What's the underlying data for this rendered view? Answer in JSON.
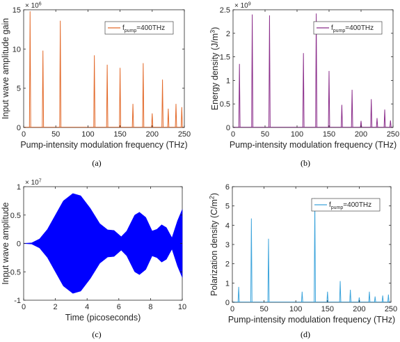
{
  "figure": {
    "captions": [
      "(a)",
      "(b)",
      "(c)",
      "(d)"
    ]
  },
  "chart_data": [
    {
      "type": "line",
      "panel": "a",
      "xlabel": "Pump-intensity modulation frequency (THz)",
      "ylabel": "Input wave amplitude gain",
      "exponent_label": "× 10^6",
      "xlim": [
        0,
        250
      ],
      "ylim": [
        0,
        15
      ],
      "xticks": [
        0,
        50,
        100,
        150,
        200,
        250
      ],
      "yticks": [
        0,
        5,
        10,
        15
      ],
      "grid": false,
      "legend": {
        "label": "f_pump=400THz",
        "label_main": "f",
        "label_sub": "pump",
        "label_rest": "=400THz",
        "position": "top-right"
      },
      "color": "#e36b2c",
      "peaks": [
        {
          "x": 10,
          "y": 14.8
        },
        {
          "x": 30,
          "y": 9.8
        },
        {
          "x": 57,
          "y": 13.6
        },
        {
          "x": 110,
          "y": 9.2
        },
        {
          "x": 130,
          "y": 8.0
        },
        {
          "x": 150,
          "y": 7.6
        },
        {
          "x": 170,
          "y": 3.0
        },
        {
          "x": 186,
          "y": 8.2
        },
        {
          "x": 200,
          "y": 1.8
        },
        {
          "x": 216,
          "y": 6.1
        },
        {
          "x": 225,
          "y": 2.4
        },
        {
          "x": 237,
          "y": 3.0
        },
        {
          "x": 246,
          "y": 2.6
        }
      ]
    },
    {
      "type": "line",
      "panel": "b",
      "xlabel": "Pump-intensity modulation frequency (THz)",
      "ylabel": "Energy density (J/m^3)",
      "exponent_label": "× 10^9",
      "xlim": [
        0,
        250
      ],
      "ylim": [
        0,
        2.5
      ],
      "xticks": [
        0,
        50,
        100,
        150,
        200,
        250
      ],
      "yticks": [
        0,
        0.5,
        1,
        1.5,
        2,
        2.5
      ],
      "grid": false,
      "legend": {
        "label": "f_pump=400THz",
        "label_main": "f",
        "label_sub": "pump",
        "label_rest": "=400THz",
        "position": "top-right"
      },
      "color": "#8b2e8b",
      "peaks": [
        {
          "x": 10,
          "y": 1.35
        },
        {
          "x": 30,
          "y": 2.4
        },
        {
          "x": 57,
          "y": 2.38
        },
        {
          "x": 110,
          "y": 1.58
        },
        {
          "x": 130,
          "y": 2.42
        },
        {
          "x": 150,
          "y": 1.2
        },
        {
          "x": 170,
          "y": 0.48
        },
        {
          "x": 186,
          "y": 0.8
        },
        {
          "x": 200,
          "y": 0.14
        },
        {
          "x": 216,
          "y": 0.6
        },
        {
          "x": 225,
          "y": 0.2
        },
        {
          "x": 237,
          "y": 0.38
        },
        {
          "x": 246,
          "y": 0.15
        }
      ]
    },
    {
      "type": "area",
      "panel": "c",
      "xlabel": "Time (picoseconds)",
      "ylabel": "Input wave amplitude",
      "exponent_label": "× 10^7",
      "xlim": [
        0,
        10
      ],
      "ylim": [
        -1,
        1
      ],
      "xticks": [
        0,
        2,
        4,
        6,
        8,
        10
      ],
      "yticks": [
        -1,
        -0.5,
        0,
        0.5,
        1
      ],
      "grid": false,
      "color": "#0000ff",
      "envelope": [
        {
          "x": 0,
          "y": 0.0
        },
        {
          "x": 0.5,
          "y": 0.01
        },
        {
          "x": 1.0,
          "y": 0.08
        },
        {
          "x": 1.5,
          "y": 0.25
        },
        {
          "x": 2.0,
          "y": 0.5
        },
        {
          "x": 2.5,
          "y": 0.75
        },
        {
          "x": 3.1,
          "y": 0.88
        },
        {
          "x": 3.6,
          "y": 0.84
        },
        {
          "x": 4.2,
          "y": 0.62
        },
        {
          "x": 4.8,
          "y": 0.35
        },
        {
          "x": 5.3,
          "y": 0.24
        },
        {
          "x": 5.7,
          "y": 0.23
        },
        {
          "x": 6.15,
          "y": 0.12
        },
        {
          "x": 6.5,
          "y": 0.22
        },
        {
          "x": 7.0,
          "y": 0.5
        },
        {
          "x": 7.3,
          "y": 0.55
        },
        {
          "x": 7.7,
          "y": 0.46
        },
        {
          "x": 8.1,
          "y": 0.22
        },
        {
          "x": 8.4,
          "y": 0.25
        },
        {
          "x": 8.7,
          "y": 0.33
        },
        {
          "x": 9.0,
          "y": 0.28
        },
        {
          "x": 9.35,
          "y": 0.1
        },
        {
          "x": 9.7,
          "y": 0.4
        },
        {
          "x": 10.0,
          "y": 0.6
        }
      ]
    },
    {
      "type": "line",
      "panel": "d",
      "xlabel": "Pump-intensity modulation frequency (THz)",
      "ylabel": "Polarization density (C/m^2)",
      "xlim": [
        0,
        250
      ],
      "ylim": [
        0,
        6
      ],
      "xticks": [
        0,
        50,
        100,
        150,
        200,
        250
      ],
      "yticks": [
        0,
        1,
        2,
        3,
        4,
        5,
        6
      ],
      "grid": false,
      "legend": {
        "label": "f_pump=400THz",
        "label_main": "f",
        "label_sub": "pump",
        "label_rest": "=400THz",
        "position": "top-right"
      },
      "color": "#3ea5dc",
      "peaks": [
        {
          "x": 10,
          "y": 0.8
        },
        {
          "x": 30,
          "y": 4.35
        },
        {
          "x": 57,
          "y": 3.3
        },
        {
          "x": 110,
          "y": 0.55
        },
        {
          "x": 130,
          "y": 5.4
        },
        {
          "x": 150,
          "y": 0.55
        },
        {
          "x": 170,
          "y": 1.1
        },
        {
          "x": 186,
          "y": 0.65
        },
        {
          "x": 200,
          "y": 0.25
        },
        {
          "x": 216,
          "y": 0.55
        },
        {
          "x": 225,
          "y": 0.3
        },
        {
          "x": 237,
          "y": 0.35
        },
        {
          "x": 246,
          "y": 0.4
        }
      ]
    }
  ]
}
